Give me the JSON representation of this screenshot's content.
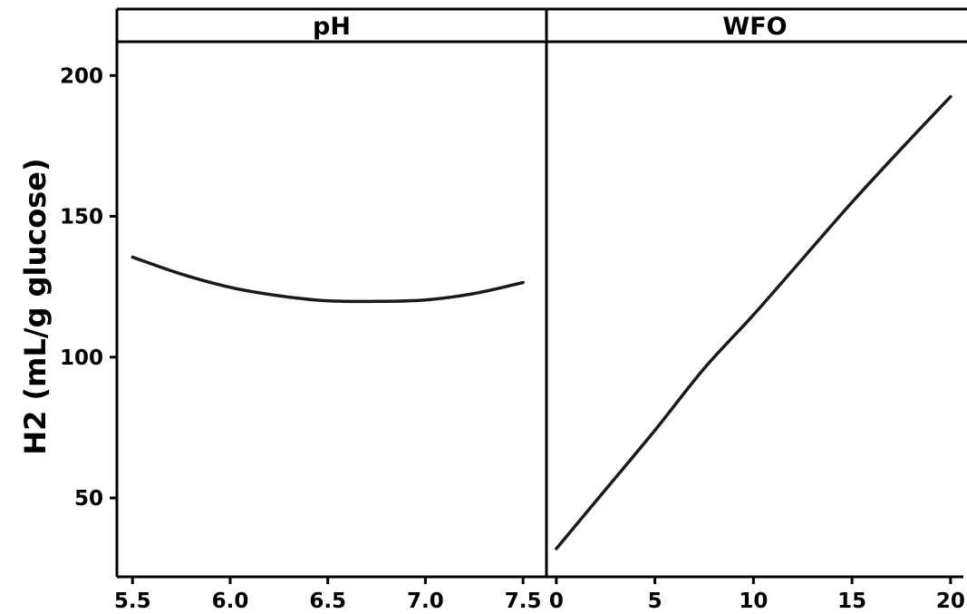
{
  "chart_data": {
    "type": "line",
    "ylabel": "H2 (mL/g glucose)",
    "ylim": [
      22,
      212
    ],
    "yticks": [
      50,
      100,
      150,
      200
    ],
    "grid": false,
    "panels": [
      {
        "title": "pH",
        "xlim": [
          5.42,
          7.62
        ],
        "xticks": [
          "5.5",
          "6.0",
          "6.5",
          "7.0",
          "7.5"
        ],
        "x": [
          5.5,
          5.75,
          6.0,
          6.25,
          6.5,
          6.75,
          7.0,
          7.25,
          7.5
        ],
        "y": [
          135.5,
          129.5,
          124.8,
          121.8,
          120.0,
          119.8,
          120.3,
          122.6,
          126.5
        ]
      },
      {
        "title": "WFO",
        "xlim": [
          -0.5,
          20.65
        ],
        "xticks": [
          "0",
          "5",
          "10",
          "15",
          "20"
        ],
        "x": [
          0,
          2.5,
          5,
          7.5,
          10,
          12.5,
          15,
          17.5,
          20
        ],
        "y": [
          32,
          53,
          74,
          96,
          115,
          135,
          155,
          174,
          192.5
        ]
      }
    ]
  }
}
